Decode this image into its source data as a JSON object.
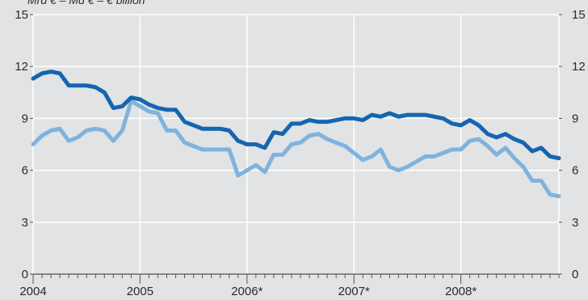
{
  "chart_data": {
    "type": "line",
    "unit_label": "Mrd € – Md € – € billion",
    "x_labels": [
      "2004",
      "2005",
      "2006*",
      "2007*",
      "2008*"
    ],
    "ylim": [
      0,
      15
    ],
    "y_ticks": [
      0,
      3,
      6,
      9,
      12,
      15
    ],
    "grid": true,
    "x_start": 2004.0,
    "x_end": 2008.9167,
    "colors": {
      "dark": "#1565b0",
      "light": "#7fb3dd",
      "background": "#e2e3e4",
      "grid": "#ffffff"
    },
    "series": [
      {
        "color": "#1565b0",
        "values": [
          11.3,
          11.6,
          11.7,
          11.6,
          10.9,
          10.9,
          10.9,
          10.8,
          10.5,
          9.6,
          9.7,
          10.2,
          10.1,
          9.8,
          9.6,
          9.5,
          9.5,
          8.8,
          8.6,
          8.4,
          8.4,
          8.4,
          8.3,
          7.7,
          7.5,
          7.5,
          7.3,
          8.2,
          8.1,
          8.7,
          8.7,
          8.9,
          8.8,
          8.8,
          8.9,
          9.0,
          9.0,
          8.9,
          9.2,
          9.1,
          9.3,
          9.1,
          9.2,
          9.2,
          9.2,
          9.1,
          9.0,
          8.7,
          8.6,
          8.9,
          8.6,
          8.1,
          7.9,
          8.1,
          7.8,
          7.6,
          7.1,
          7.3,
          6.8,
          6.7
        ]
      },
      {
        "color": "#7fb3dd",
        "values": [
          7.5,
          8.0,
          8.3,
          8.4,
          7.7,
          7.9,
          8.3,
          8.4,
          8.3,
          7.7,
          8.3,
          10.0,
          9.7,
          9.4,
          9.3,
          8.3,
          8.3,
          7.6,
          7.4,
          7.2,
          7.2,
          7.2,
          7.2,
          5.7,
          6.0,
          6.3,
          5.9,
          6.9,
          6.9,
          7.5,
          7.6,
          8.0,
          8.1,
          7.8,
          7.6,
          7.4,
          7.0,
          6.6,
          6.8,
          7.2,
          6.2,
          6.0,
          6.2,
          6.5,
          6.8,
          6.8,
          7.0,
          7.2,
          7.2,
          7.7,
          7.8,
          7.4,
          6.9,
          7.3,
          6.7,
          6.2,
          5.4,
          5.4,
          4.6,
          4.5
        ]
      }
    ]
  }
}
